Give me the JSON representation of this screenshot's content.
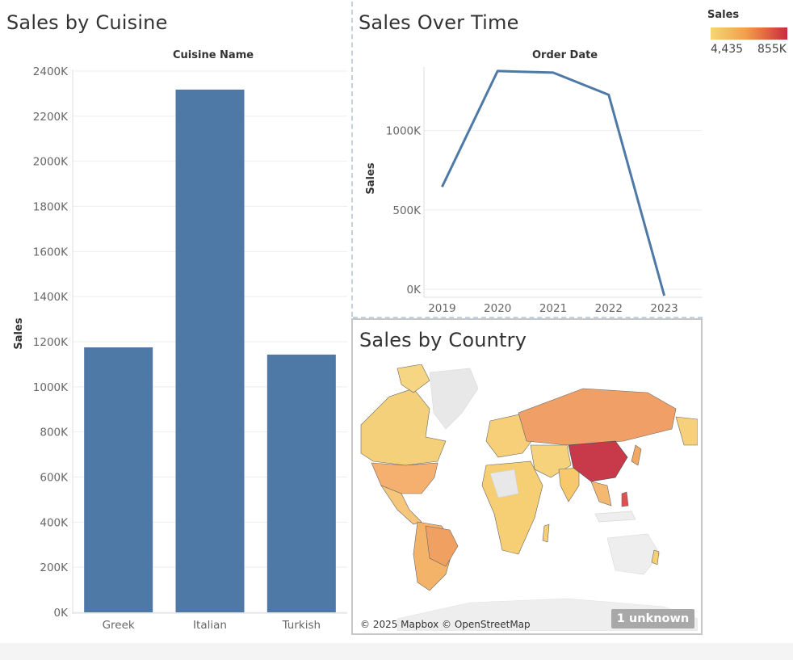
{
  "panels": {
    "cuisine": {
      "title": "Sales by Cuisine",
      "column_header": "Cuisine Name"
    },
    "time": {
      "title": "Sales Over Time",
      "column_header": "Order Date"
    },
    "country": {
      "title": "Sales by Country",
      "attribution": "© 2025 Mapbox © OpenStreetMap",
      "unknown_badge": "1 unknown"
    }
  },
  "legend": {
    "title": "Sales",
    "min_label": "4,435",
    "max_label": "855K",
    "colors": [
      "#f6d675",
      "#f2a04c",
      "#e06040",
      "#c62b40"
    ]
  },
  "chart_data": [
    {
      "type": "bar",
      "title": "Sales by Cuisine",
      "xlabel": "Cuisine Name",
      "ylabel": "Sales",
      "categories": [
        "Greek",
        "Italian",
        "Turkish"
      ],
      "values": [
        1175000,
        2318000,
        1143000
      ],
      "ylim": [
        0,
        2400000
      ],
      "yticks": [
        0,
        200000,
        400000,
        600000,
        800000,
        1000000,
        1200000,
        1400000,
        1600000,
        1800000,
        2000000,
        2200000,
        2400000
      ],
      "ytick_labels": [
        "0K",
        "200K",
        "400K",
        "600K",
        "800K",
        "1000K",
        "1200K",
        "1400K",
        "1600K",
        "1800K",
        "2000K",
        "2200K",
        "2400K"
      ],
      "color": "#4e79a7",
      "grid": true
    },
    {
      "type": "line",
      "title": "Sales Over Time",
      "xlabel": "Order Date",
      "ylabel": "Sales",
      "categories": [
        "2019",
        "2020",
        "2021",
        "2022",
        "2023"
      ],
      "values": [
        645000,
        1375000,
        1365000,
        1225000,
        -40000
      ],
      "ylim": [
        -50000,
        1400000
      ],
      "yticks": [
        0,
        500000,
        1000000
      ],
      "ytick_labels": [
        "0K",
        "500K",
        "1000K"
      ],
      "color": "#4e79a7",
      "grid": true
    }
  ],
  "map_data": {
    "type": "choropleth",
    "highlight": [
      {
        "region": "China",
        "color": "#c83a4a"
      },
      {
        "region": "Russia",
        "color": "#f0a066"
      },
      {
        "region": "Brazil",
        "color": "#f0a060"
      },
      {
        "region": "United States",
        "color": "#f5b87a"
      },
      {
        "region": "Canada",
        "color": "#f5d07a"
      },
      {
        "region": "India",
        "color": "#f7c86c"
      },
      {
        "region": "Australia",
        "color": "#eeeeee"
      }
    ]
  }
}
